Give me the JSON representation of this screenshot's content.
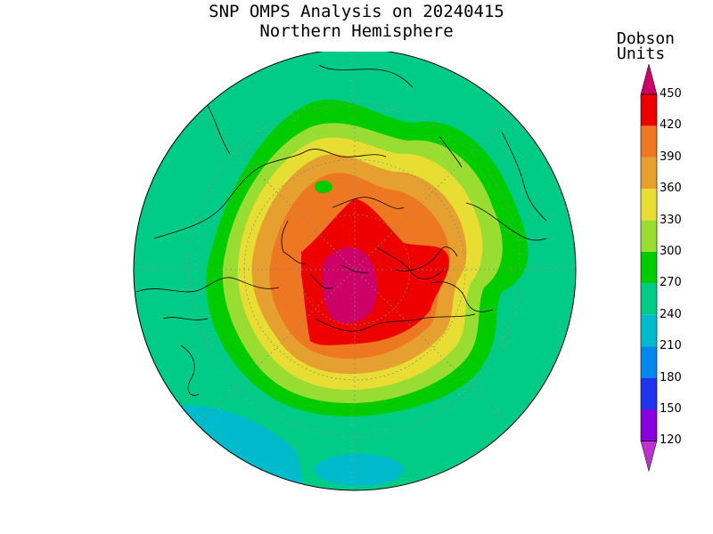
{
  "title": "SNP OMPS Analysis on 20240415",
  "subtitle": "Northern Hemisphere",
  "colorbar": {
    "title_line1": "Dobson",
    "title_line2": "Units",
    "ticks": [
      "450",
      "420",
      "390",
      "360",
      "330",
      "300",
      "270",
      "240",
      "210",
      "180",
      "150",
      "120"
    ],
    "colors": [
      "#cc0066",
      "#ee0000",
      "#ee7722",
      "#e6a030",
      "#e8dd33",
      "#99dd33",
      "#00cc00",
      "#00cc88",
      "#00bbcc",
      "#0088ee",
      "#2233ee",
      "#8800dd",
      "#bb33cc"
    ]
  }
}
